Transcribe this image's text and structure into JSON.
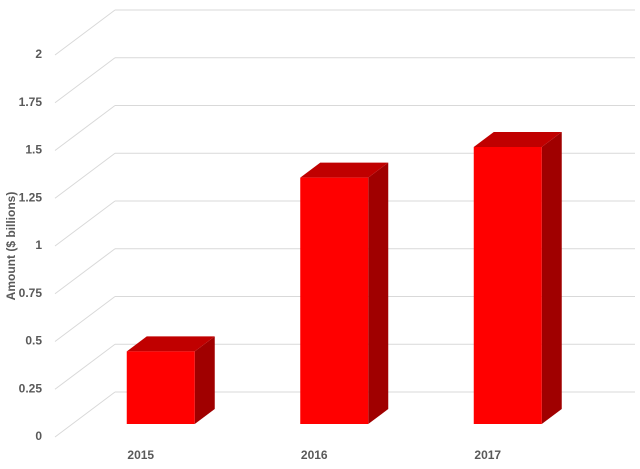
{
  "chart_data": {
    "type": "bar3d",
    "y_label": "Amount ($ billions)",
    "categories": [
      "2015",
      "2016",
      "2017"
    ],
    "values": [
      0.38,
      1.29,
      1.45
    ],
    "color": "#ff0000",
    "ylim": [
      0,
      2
    ],
    "yticks": [
      0,
      0.25,
      0.5,
      0.75,
      1,
      1.25,
      1.5,
      1.75,
      2
    ],
    "grid": true
  }
}
